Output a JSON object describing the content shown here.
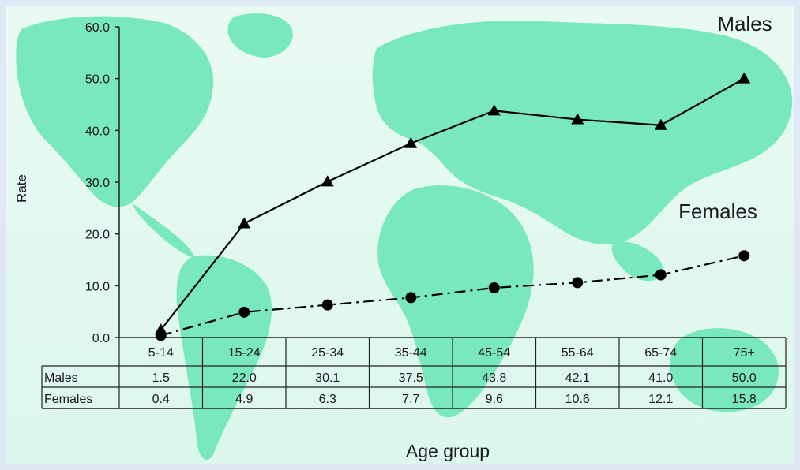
{
  "chart_data": {
    "type": "line",
    "title": "",
    "xlabel": "Age group",
    "ylabel": "Rate",
    "ylim": [
      0,
      60
    ],
    "yticks": [
      "0.0",
      "10.0",
      "20.0",
      "30.0",
      "40.0",
      "50.0",
      "60.0"
    ],
    "categories": [
      "5-14",
      "15-24",
      "25-34",
      "35-44",
      "45-54",
      "55-64",
      "65-74",
      "75+"
    ],
    "series": [
      {
        "name": "Males",
        "values": [
          1.5,
          22.0,
          30.1,
          37.5,
          43.8,
          42.1,
          41.0,
          50.0
        ],
        "labels": [
          "1.5",
          "22.0",
          "30.1",
          "37.5",
          "43.8",
          "42.1",
          "41.0",
          "50.0"
        ],
        "marker": "triangle",
        "line_style": "solid",
        "color": "#000000"
      },
      {
        "name": "Females",
        "values": [
          0.4,
          4.9,
          6.3,
          7.7,
          9.6,
          10.6,
          12.1,
          15.8
        ],
        "labels": [
          "0.4",
          "4.9",
          "6.3",
          "7.7",
          "9.6",
          "10.6",
          "12.1",
          "15.8"
        ],
        "marker": "circle",
        "line_style": "dash-dot",
        "color": "#000000"
      }
    ],
    "grid": false,
    "legend": "inline-labels",
    "background": "world-map",
    "map_color": "#62e3b4"
  }
}
